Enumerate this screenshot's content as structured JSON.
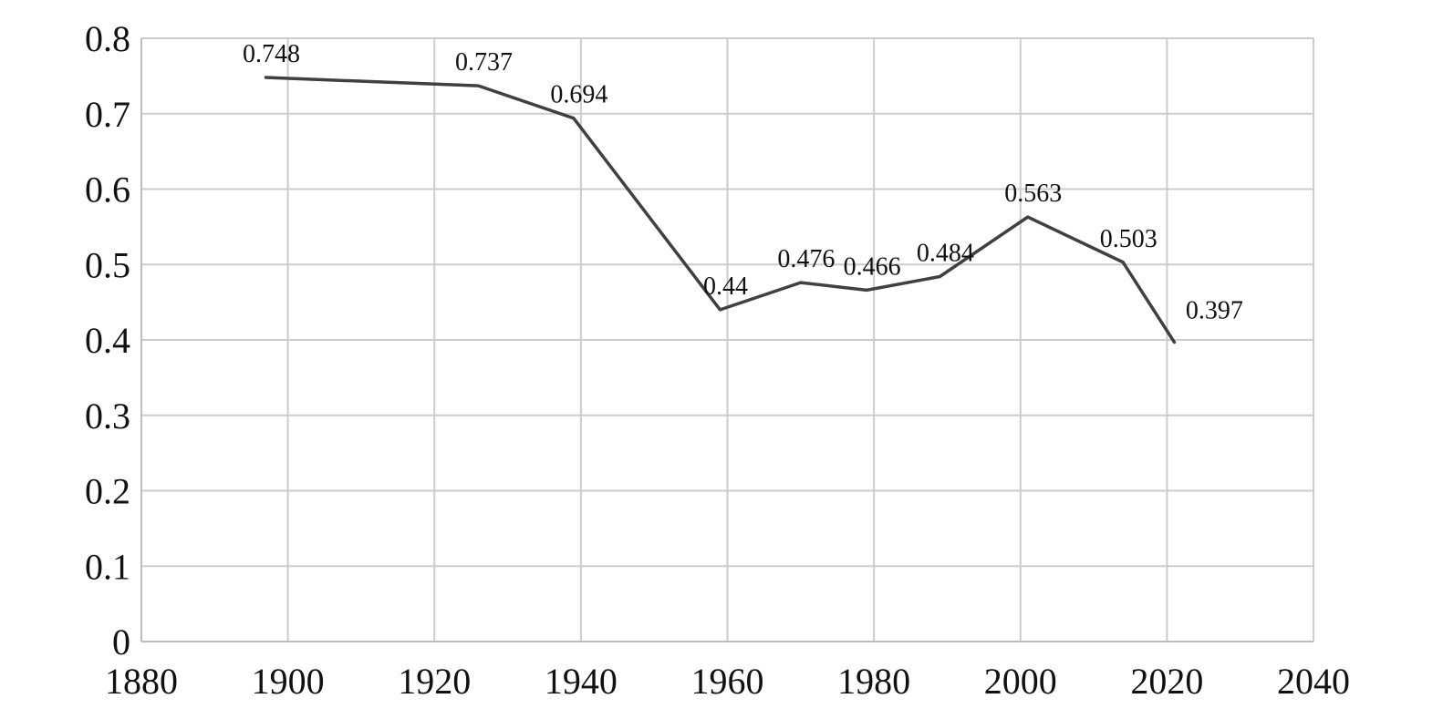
{
  "chart_data": {
    "type": "line",
    "title": "",
    "xlabel": "",
    "ylabel": "",
    "xlim": [
      1880,
      2040
    ],
    "ylim": [
      0,
      0.8
    ],
    "x_ticks": [
      1880,
      1900,
      1920,
      1940,
      1960,
      1980,
      2000,
      2020,
      2040
    ],
    "y_ticks": [
      0,
      0.1,
      0.2,
      0.3,
      0.4,
      0.5,
      0.6,
      0.7,
      0.8
    ],
    "x_tick_labels": [
      "1880",
      "1900",
      "1920",
      "1940",
      "1960",
      "1980",
      "2000",
      "2020",
      "2040"
    ],
    "y_tick_labels": [
      "0",
      "0.1",
      "0.2",
      "0.3",
      "0.4",
      "0.5",
      "0.6",
      "0.7",
      "0.8"
    ],
    "grid": true,
    "legend": "none",
    "line_color": "#404040",
    "grid_color": "#cccccc",
    "series": [
      {
        "x": [
          1897,
          1926,
          1939,
          1959,
          1970,
          1979,
          1989,
          2001,
          2014,
          2021
        ],
        "values": [
          0.748,
          0.737,
          0.694,
          0.44,
          0.476,
          0.466,
          0.484,
          0.563,
          0.503,
          0.397
        ],
        "labels": [
          "0.748",
          "0.737",
          "0.694",
          "0.44",
          "0.476",
          "0.466",
          "0.484",
          "0.563",
          "0.503",
          "0.397"
        ]
      }
    ]
  }
}
